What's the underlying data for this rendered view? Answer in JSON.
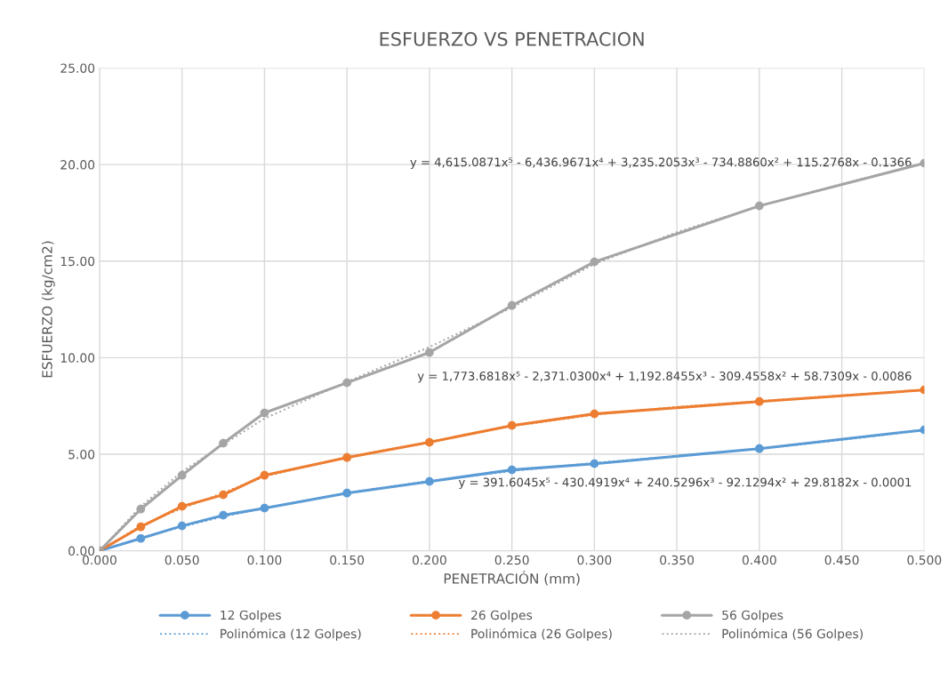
{
  "chart_data": {
    "type": "line",
    "title": "ESFUERZO VS PENETRACION",
    "xlabel": "PENETRACIÓN (mm)",
    "ylabel": "ESFUERZO (kg/cm2)",
    "x": [
      0,
      0.025,
      0.05,
      0.075,
      0.1,
      0.15,
      0.2,
      0.25,
      0.3,
      0.4,
      0.5
    ],
    "series": [
      {
        "name": "12 Golpes",
        "color": "#5b9bd5",
        "marker": "circle",
        "line_style": "solid",
        "values": [
          0,
          0.64,
          1.29,
          1.84,
          2.21,
          2.99,
          3.59,
          4.19,
          4.51,
          5.29,
          6.26
        ]
      },
      {
        "name": "26 Golpes",
        "color": "#ed7d31",
        "marker": "circle",
        "line_style": "solid",
        "values": [
          0,
          1.24,
          2.3,
          2.9,
          3.91,
          4.83,
          5.62,
          6.49,
          7.09,
          7.73,
          8.33
        ]
      },
      {
        "name": "56 Golpes",
        "color": "#a5a5a5",
        "marker": "circle",
        "line_style": "solid",
        "values": [
          0,
          2.16,
          3.91,
          5.57,
          7.14,
          8.7,
          10.27,
          12.7,
          14.96,
          17.86,
          20.07
        ]
      },
      {
        "name": "Polinómica (12 Golpes)",
        "color": "#5b9bd5",
        "marker": "none",
        "line_style": "dotted",
        "x": [
          0,
          0.025,
          0.05,
          0.075,
          0.1,
          0.15,
          0.2,
          0.25,
          0.3,
          0.35,
          0.4,
          0.45,
          0.5
        ],
        "values": [
          0,
          0.66,
          1.25,
          1.78,
          2.22,
          2.99,
          3.62,
          4.13,
          4.55,
          4.9,
          5.28,
          5.74,
          6.26
        ]
      },
      {
        "name": "Polinómica (26 Golpes)",
        "color": "#ed7d31",
        "marker": "none",
        "line_style": "dotted",
        "x": [
          0,
          0.025,
          0.05,
          0.075,
          0.1,
          0.15,
          0.2,
          0.25,
          0.3,
          0.35,
          0.4,
          0.45,
          0.5
        ],
        "values": [
          0,
          1.3,
          2.2,
          3.0,
          3.85,
          4.85,
          5.65,
          6.45,
          7.05,
          7.45,
          7.75,
          8.05,
          8.33
        ]
      },
      {
        "name": "Polinómica (56 Golpes)",
        "color": "#a5a5a5",
        "marker": "none",
        "line_style": "dotted",
        "x": [
          0,
          0.025,
          0.05,
          0.075,
          0.1,
          0.15,
          0.2,
          0.25,
          0.3,
          0.35,
          0.4,
          0.45,
          0.5
        ],
        "values": [
          0,
          2.3,
          4.1,
          5.5,
          6.85,
          8.75,
          10.55,
          12.6,
          14.85,
          16.5,
          17.85,
          19.0,
          20.07
        ]
      }
    ],
    "annotations": [
      "y = 4,615.0871x⁵ - 6,436.9671x⁴ + 3,235.2053x³ - 734.8860x² + 115.2768x - 0.1366",
      "y = 1,773.6818x⁵ - 2,371.0300x⁴ + 1,192.8455x³ - 309.4558x² + 58.7309x - 0.0086",
      "y = 391.6045x⁵ - 430.4919x⁴ + 240.5296x³ - 92.1294x² + 29.8182x - 0.0001"
    ],
    "xlim": [
      0,
      0.5
    ],
    "ylim": [
      0,
      25
    ],
    "xticks": [
      {
        "value": 0,
        "label": "0.000"
      },
      {
        "value": 0.05,
        "label": "0.050"
      },
      {
        "value": 0.1,
        "label": "0.100"
      },
      {
        "value": 0.15,
        "label": "0.150"
      },
      {
        "value": 0.2,
        "label": "0.200"
      },
      {
        "value": 0.25,
        "label": "0.250"
      },
      {
        "value": 0.3,
        "label": "0.300"
      },
      {
        "value": 0.35,
        "label": "0.350"
      },
      {
        "value": 0.4,
        "label": "0.400"
      },
      {
        "value": 0.45,
        "label": "0.450"
      },
      {
        "value": 0.5,
        "label": "0.500"
      }
    ],
    "yticks": [
      {
        "value": 0,
        "label": "0.00"
      },
      {
        "value": 5,
        "label": "5.00"
      },
      {
        "value": 10,
        "label": "10.00"
      },
      {
        "value": 15,
        "label": "15.00"
      },
      {
        "value": 20,
        "label": "20.00"
      },
      {
        "value": 25,
        "label": "25.00"
      }
    ],
    "grid": true,
    "legend": "bottom"
  }
}
